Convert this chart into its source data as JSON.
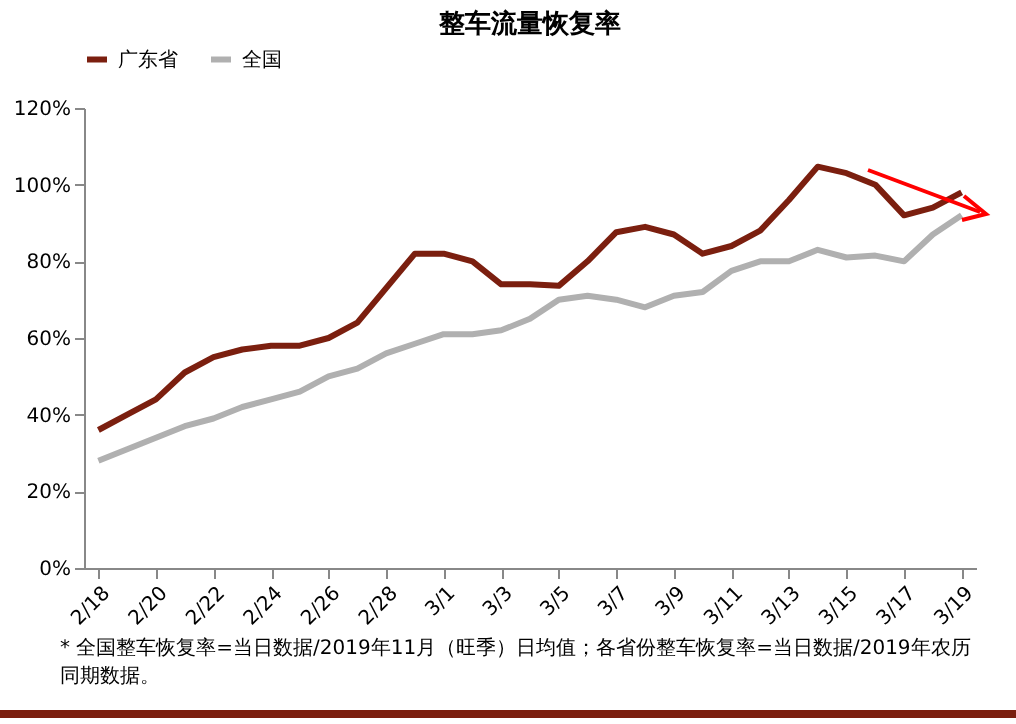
{
  "chart_data": {
    "type": "line",
    "title": "整车流量恢复率",
    "categories": [
      "2/18",
      null,
      "2/20",
      null,
      "2/22",
      null,
      "2/24",
      null,
      "2/26",
      null,
      "2/28",
      null,
      "3/1",
      null,
      "3/3",
      null,
      "3/5",
      null,
      "3/7",
      null,
      "3/9",
      null,
      "3/11",
      null,
      "3/13",
      null,
      "3/15",
      null,
      "3/17",
      null,
      "3/19"
    ],
    "series": [
      {
        "name": "广东省",
        "color": "#7b1f0f",
        "values": [
          36,
          40,
          44,
          51,
          55,
          57,
          58,
          58,
          60,
          64,
          73,
          82,
          82,
          80,
          74,
          74,
          73.6,
          80,
          87.6,
          89,
          87,
          82,
          84,
          88,
          96,
          104.7,
          103,
          100,
          92,
          94,
          98
        ]
      },
      {
        "name": "全国",
        "color": "#b0b0b0",
        "values": [
          28,
          31,
          34,
          37,
          39,
          42,
          44,
          46,
          50,
          52,
          56,
          58.5,
          61,
          61,
          62,
          65,
          70,
          71,
          70,
          68,
          71,
          72,
          77.5,
          80,
          80,
          83,
          81,
          81.5,
          80,
          87,
          92
        ]
      }
    ],
    "ylim": [
      0,
      120
    ],
    "yticks": [
      {
        "value": 0,
        "label": "0%"
      },
      {
        "value": 20,
        "label": "20%"
      },
      {
        "value": 40,
        "label": "40%"
      },
      {
        "value": 60,
        "label": "60%"
      },
      {
        "value": 80,
        "label": "80%"
      },
      {
        "value": 100,
        "label": "100%"
      },
      {
        "value": 120,
        "label": "120%"
      }
    ],
    "grid": false,
    "legend": "top",
    "marker": "none",
    "line_style": "solid",
    "annotations": [
      "* 全国整车恢复率=当日数据/2019年11月（旺季）日均值；各省份整车恢复率=当日数据/2019年农历同期数据。"
    ]
  }
}
